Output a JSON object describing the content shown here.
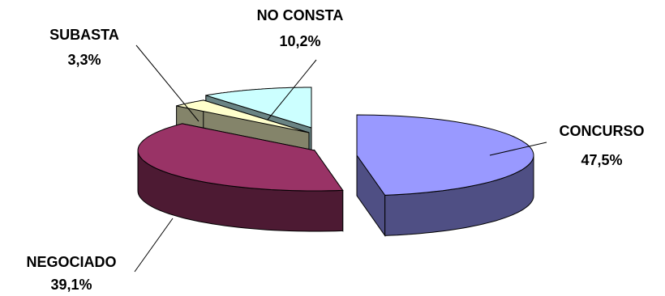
{
  "chart_data": {
    "type": "pie",
    "title": "",
    "legend": "none",
    "style": "3d-exploded",
    "slices": [
      {
        "label": "CONCURSO",
        "value_label": "47,5%",
        "value": 47.5,
        "color": "#9999ff",
        "side_color": "#4f4f84"
      },
      {
        "label": "NEGOCIADO",
        "value_label": "39,1%",
        "value": 39.1,
        "color": "#993366",
        "side_color": "#4d1a33"
      },
      {
        "label": "SUBASTA",
        "value_label": "3,3%",
        "value": 3.3,
        "color": "#ffffcc",
        "side_color": "#84846a"
      },
      {
        "label": "NO CONSTA",
        "value_label": "10,2%",
        "value": 10.2,
        "color": "#ccffff",
        "side_color": "#6a8484"
      }
    ]
  }
}
